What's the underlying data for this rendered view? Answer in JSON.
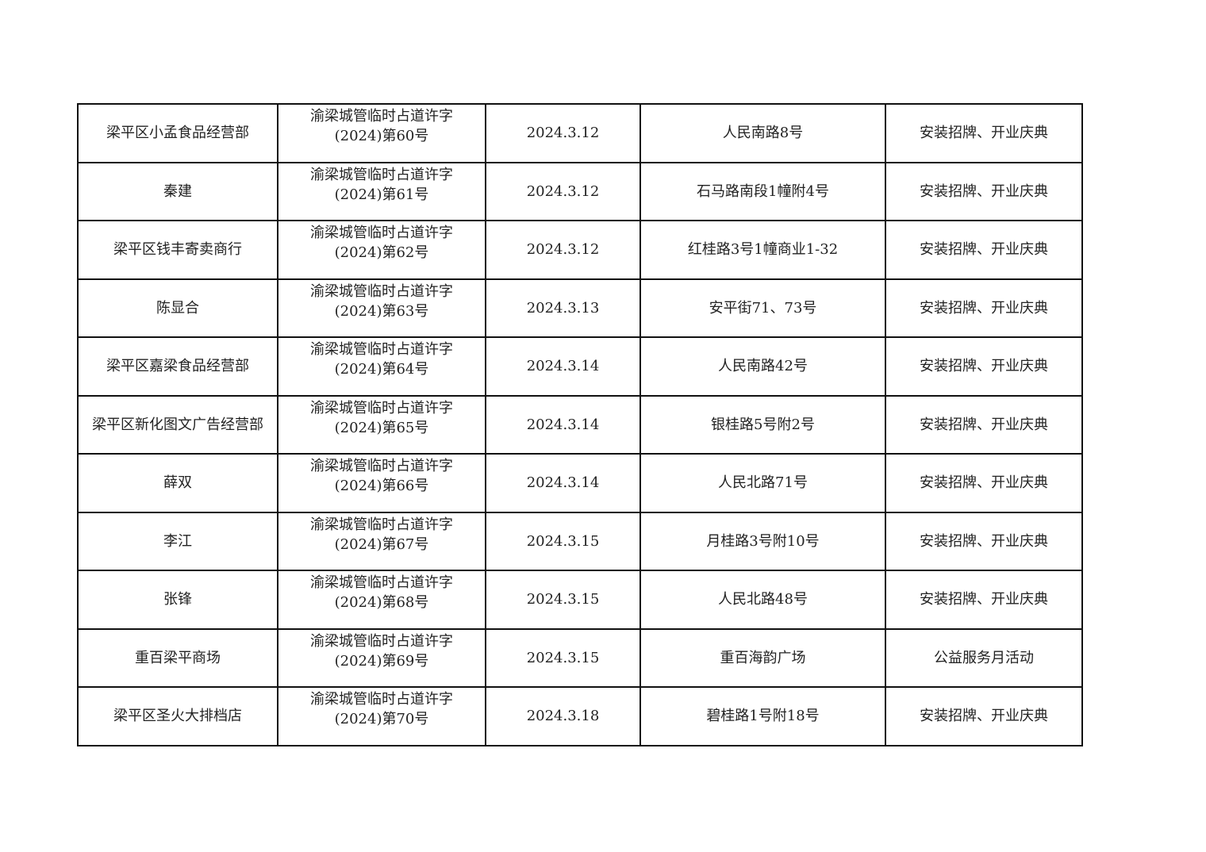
{
  "rows": [
    {
      "name": "梁平区小孟食品经营部",
      "permit_line1": "渝梁城管临时占道许字",
      "permit_line2": "(2024)第60号",
      "date": "2024.3.12",
      "address": "人民南路8号",
      "purpose": "安装招牌、开业庆典"
    },
    {
      "name": "秦建",
      "permit_line1": "渝梁城管临时占道许字",
      "permit_line2": "(2024)第61号",
      "date": "2024.3.12",
      "address": "石马路南段1幢附4号",
      "purpose": "安装招牌、开业庆典"
    },
    {
      "name": "梁平区钱丰寄卖商行",
      "permit_line1": "渝梁城管临时占道许字",
      "permit_line2": "(2024)第62号",
      "date": "2024.3.12",
      "address": "红桂路3号1幢商业1-32",
      "purpose": "安装招牌、开业庆典"
    },
    {
      "name": "陈显合",
      "permit_line1": "渝梁城管临时占道许字",
      "permit_line2": "(2024)第63号",
      "date": "2024.3.13",
      "address": "安平街71、73号",
      "purpose": "安装招牌、开业庆典"
    },
    {
      "name": "梁平区嘉梁食品经营部",
      "permit_line1": "渝梁城管临时占道许字",
      "permit_line2": "(2024)第64号",
      "date": "2024.3.14",
      "address": "人民南路42号",
      "purpose": "安装招牌、开业庆典"
    },
    {
      "name": "梁平区新化图文广告经营部",
      "permit_line1": "渝梁城管临时占道许字",
      "permit_line2": "(2024)第65号",
      "date": "2024.3.14",
      "address": "银桂路5号附2号",
      "purpose": "安装招牌、开业庆典"
    },
    {
      "name": "薛双",
      "permit_line1": "渝梁城管临时占道许字",
      "permit_line2": "(2024)第66号",
      "date": "2024.3.14",
      "address": "人民北路71号",
      "purpose": "安装招牌、开业庆典"
    },
    {
      "name": "李江",
      "permit_line1": "渝梁城管临时占道许字",
      "permit_line2": "(2024)第67号",
      "date": "2024.3.15",
      "address": "月桂路3号附10号",
      "purpose": "安装招牌、开业庆典"
    },
    {
      "name": "张锋",
      "permit_line1": "渝梁城管临时占道许字",
      "permit_line2": "(2024)第68号",
      "date": "2024.3.15",
      "address": "人民北路48号",
      "purpose": "安装招牌、开业庆典"
    },
    {
      "name": "重百梁平商场",
      "permit_line1": "渝梁城管临时占道许字",
      "permit_line2": "(2024)第69号",
      "date": "2024.3.15",
      "address": "重百海韵广场",
      "purpose": "公益服务月活动"
    },
    {
      "name": "梁平区圣火大排档店",
      "permit_line1": "渝梁城管临时占道许字",
      "permit_line2": "(2024)第70号",
      "date": "2024.3.18",
      "address": "碧桂路1号附18号",
      "purpose": "安装招牌、开业庆典"
    }
  ]
}
